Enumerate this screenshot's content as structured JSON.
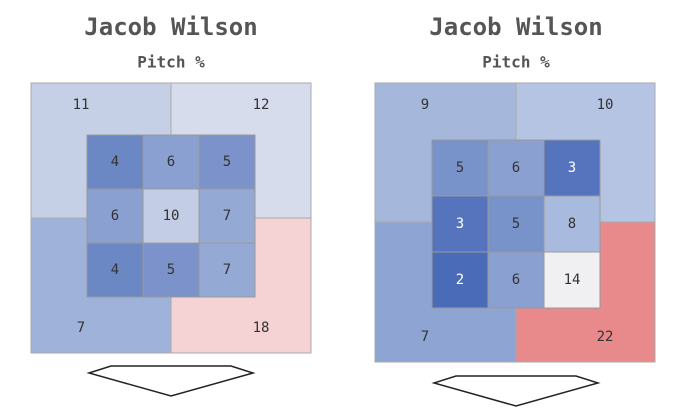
{
  "chart_data": [
    {
      "type": "heatmap",
      "title": "Jacob Wilson",
      "subtitle": "Pitch %",
      "zone_values": [
        4,
        6,
        5,
        6,
        10,
        7,
        4,
        5,
        7
      ],
      "zone_colors": [
        "#6c88c4",
        "#8aa0d0",
        "#7b93ca",
        "#8aa0d0",
        "#c3cee6",
        "#94a9d4",
        "#6c88c4",
        "#7b93ca",
        "#94a9d4"
      ],
      "outer_values": [
        11,
        12,
        7,
        18
      ],
      "outer_colors": [
        "#c5d0e6",
        "#d6dcec",
        "#9fb3da",
        "#f5d2d3"
      ]
    },
    {
      "type": "heatmap",
      "title": "Jacob Wilson",
      "subtitle": "Pitch %",
      "zone_values": [
        5,
        6,
        3,
        3,
        5,
        8,
        2,
        6,
        14
      ],
      "zone_colors": [
        "#7893c9",
        "#8aa0d0",
        "#5574bd",
        "#5574bd",
        "#7893c9",
        "#a8badd",
        "#4a6cb8",
        "#8aa0d0",
        "#f0f0f2"
      ],
      "outer_values": [
        9,
        10,
        7,
        22
      ],
      "outer_colors": [
        "#a5b8dc",
        "#b5c4e2",
        "#8ea4d2",
        "#e8898c"
      ]
    }
  ]
}
